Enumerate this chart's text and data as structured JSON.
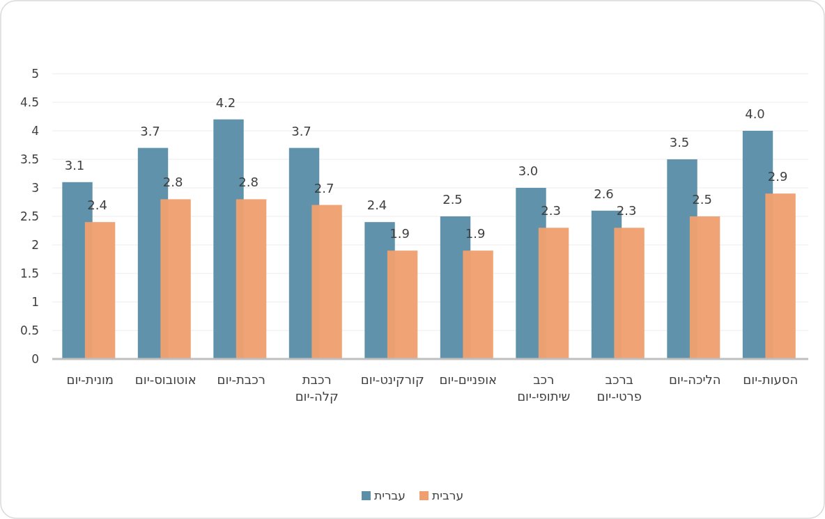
{
  "chart_data": {
    "type": "bar",
    "categories": [
      "מונית-יום",
      "אוטובוס-יום",
      "רכבת-יום",
      "רכבת קלה-יום",
      "קורקינט-יום",
      "אופניים-יום",
      "רכב שיתופי-יום",
      "ברכב פרטי-יום",
      "הליכה-יום",
      "הסעות-יום"
    ],
    "series": [
      {
        "name": "עברית",
        "color": "#5b8fa8",
        "values": [
          3.1,
          3.7,
          4.2,
          3.7,
          2.4,
          2.5,
          3.0,
          2.6,
          3.5,
          4.0
        ],
        "value_labels": [
          "3.1",
          "3.7",
          "4.2",
          "3.7",
          "2.4",
          "2.5",
          "3.0",
          "2.6",
          "3.5",
          "4.0"
        ]
      },
      {
        "name": "ערבית",
        "color": "#f0a070",
        "values": [
          2.4,
          2.8,
          2.8,
          2.7,
          1.9,
          1.9,
          2.3,
          2.3,
          2.5,
          2.9
        ],
        "value_labels": [
          "2.4",
          "2.8",
          "2.8",
          "2.7",
          "1.9",
          "1.9",
          "2.3",
          "2.3",
          "2.5",
          "2.9"
        ]
      }
    ],
    "ylim": [
      0,
      5
    ],
    "yticks": [
      0,
      0.5,
      1,
      1.5,
      2,
      2.5,
      3,
      3.5,
      4,
      4.5,
      5
    ],
    "grid": "y",
    "legend": "bottom"
  }
}
